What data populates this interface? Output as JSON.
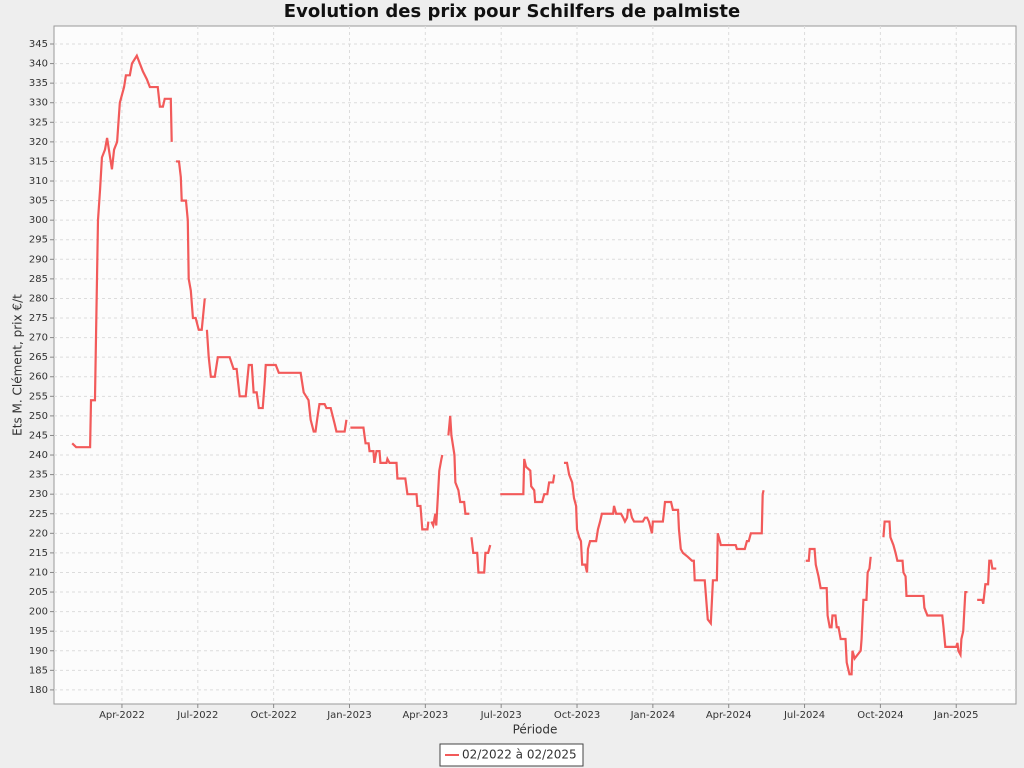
{
  "chart_data": {
    "type": "line",
    "title": "Evolution des prix pour Schilfers de palmiste",
    "x_label": "Période",
    "y_label": "Ets M. Clément, prix €/t",
    "grid": true,
    "legend": "bottom",
    "xlim": [
      2022.026,
      2025.197
    ],
    "ylim": [
      176.4,
      349.6
    ],
    "xticks": [
      {
        "value": 2022.25,
        "label": "Apr-2022"
      },
      {
        "value": 2022.5,
        "label": "Jul-2022"
      },
      {
        "value": 2022.75,
        "label": "Oct-2022"
      },
      {
        "value": 2023.0,
        "label": "Jan-2023"
      },
      {
        "value": 2023.25,
        "label": "Apr-2023"
      },
      {
        "value": 2023.5,
        "label": "Jul-2023"
      },
      {
        "value": 2023.75,
        "label": "Oct-2023"
      },
      {
        "value": 2024.0,
        "label": "Jan-2024"
      },
      {
        "value": 2024.25,
        "label": "Apr-2024"
      },
      {
        "value": 2024.5,
        "label": "Jul-2024"
      },
      {
        "value": 2024.75,
        "label": "Oct-2024"
      },
      {
        "value": 2025.0,
        "label": "Jan-2025"
      }
    ],
    "yticks": [
      180,
      185,
      190,
      195,
      200,
      205,
      210,
      215,
      220,
      225,
      230,
      235,
      240,
      245,
      250,
      255,
      260,
      265,
      270,
      275,
      280,
      285,
      290,
      295,
      300,
      305,
      310,
      315,
      320,
      325,
      330,
      335,
      340,
      345
    ],
    "x": [
      2022.086,
      2022.099,
      2022.145,
      2022.148,
      2022.161,
      2022.164,
      2022.171,
      2022.178,
      2022.184,
      2022.194,
      2022.201,
      2022.207,
      2022.217,
      2022.224,
      2022.234,
      2022.243,
      2022.257,
      2022.263,
      2022.276,
      2022.283,
      2022.299,
      2022.309,
      2022.319,
      2022.332,
      2022.342,
      2022.368,
      2022.375,
      2022.385,
      2022.391,
      2022.411,
      2022.414,
      2022.42,
      2022.428,
      2022.438,
      2022.444,
      2022.447,
      2022.461,
      2022.467,
      2022.47,
      2022.477,
      2022.484,
      2022.493,
      2022.503,
      2022.513,
      2022.523,
      2022.526,
      2022.53,
      2022.536,
      2022.543,
      2022.556,
      2022.566,
      2022.605,
      2022.618,
      2022.628,
      2022.638,
      2022.658,
      2022.668,
      2022.678,
      2022.684,
      2022.694,
      2022.701,
      2022.714,
      2022.72,
      2022.724,
      2022.757,
      2022.767,
      2022.803,
      2022.839,
      2022.849,
      2022.865,
      2022.872,
      2022.882,
      2022.888,
      2022.895,
      2022.901,
      2022.918,
      2022.924,
      2022.938,
      2022.951,
      2022.957,
      2022.984,
      2022.99,
      2022.993,
      2023.003,
      2023.046,
      2023.053,
      2023.063,
      2023.066,
      2023.079,
      2023.082,
      2023.089,
      2023.099,
      2023.102,
      2023.122,
      2023.125,
      2023.132,
      2023.155,
      2023.158,
      2023.184,
      2023.191,
      2023.221,
      2023.224,
      2023.234,
      2023.24,
      2023.257,
      2023.26,
      2023.263,
      2023.27,
      2023.276,
      2023.283,
      2023.286,
      2023.296,
      2023.303,
      2023.306,
      2023.31,
      2023.326,
      2023.332,
      2023.336,
      2023.346,
      2023.349,
      2023.359,
      2023.365,
      2023.378,
      2023.382,
      2023.395,
      2023.398,
      2023.402,
      2023.408,
      2023.421,
      2023.425,
      2023.444,
      2023.448,
      2023.457,
      2023.464,
      2023.47,
      2023.497,
      2023.573,
      2023.576,
      2023.582,
      2023.596,
      2023.599,
      2023.609,
      2023.612,
      2023.635,
      2023.642,
      2023.652,
      2023.658,
      2023.671,
      2023.675,
      2023.68,
      2023.707,
      2023.717,
      2023.724,
      2023.734,
      2023.74,
      2023.747,
      2023.75,
      2023.757,
      2023.763,
      2023.767,
      2023.777,
      2023.783,
      2023.786,
      2023.793,
      2023.813,
      2023.819,
      2023.826,
      2023.832,
      2023.869,
      2023.872,
      2023.879,
      2023.895,
      2023.902,
      2023.908,
      2023.915,
      2023.918,
      2023.925,
      2023.931,
      2023.938,
      2023.967,
      2023.974,
      2023.981,
      2023.987,
      2023.997,
      2024.0,
      2024.033,
      2024.036,
      2024.04,
      2024.06,
      2024.066,
      2024.083,
      2024.086,
      2024.092,
      2024.099,
      2024.115,
      2024.129,
      2024.135,
      2024.138,
      2024.171,
      2024.178,
      2024.181,
      2024.191,
      2024.198,
      2024.211,
      2024.214,
      2024.221,
      2024.224,
      2024.25,
      2024.273,
      2024.277,
      2024.303,
      2024.31,
      2024.316,
      2024.323,
      2024.359,
      2024.362,
      2024.365,
      2024.38,
      2024.504,
      2024.514,
      2024.517,
      2024.533,
      2024.537,
      2024.546,
      2024.553,
      2024.573,
      2024.576,
      2024.583,
      2024.589,
      2024.592,
      2024.602,
      2024.606,
      2024.612,
      2024.619,
      2024.635,
      2024.639,
      2024.648,
      2024.655,
      2024.658,
      2024.665,
      2024.685,
      2024.688,
      2024.694,
      2024.704,
      2024.708,
      2024.714,
      2024.718,
      2024.73,
      2024.76,
      2024.764,
      2024.78,
      2024.783,
      2024.793,
      2024.8,
      2024.806,
      2024.823,
      2024.826,
      2024.833,
      2024.836,
      2024.892,
      2024.895,
      2024.905,
      2024.954,
      2024.958,
      2024.964,
      2024.991,
      2025.0,
      2025.004,
      2025.007,
      2025.014,
      2025.017,
      2025.023,
      2025.03,
      2025.037,
      2025.05,
      2025.069,
      2025.086,
      2025.089,
      2025.096,
      2025.105,
      2025.109,
      2025.115,
      2025.119,
      2025.132
    ],
    "series": [
      {
        "name": "02/2022 à 02/2025",
        "color": "#f25a5a",
        "values": [
          243,
          242,
          242,
          254,
          254,
          268,
          300,
          308,
          316,
          318,
          321,
          318,
          313,
          318,
          320,
          330,
          334,
          337,
          337,
          340,
          342,
          340,
          338,
          336,
          334,
          334,
          329,
          329,
          331,
          331,
          320,
          null,
          315,
          315,
          311,
          305,
          305,
          300,
          285,
          282,
          275,
          275,
          272,
          272,
          280,
          null,
          272,
          265,
          260,
          260,
          265,
          265,
          262,
          262,
          255,
          255,
          263,
          263,
          256,
          256,
          252,
          252,
          258,
          263,
          263,
          261,
          261,
          261,
          256,
          254,
          249,
          246,
          246,
          250,
          253,
          253,
          252,
          252,
          248,
          246,
          246,
          249,
          null,
          247,
          247,
          243,
          243,
          241,
          241,
          238,
          241,
          241,
          238,
          238,
          239,
          238,
          238,
          234,
          234,
          230,
          230,
          227,
          227,
          221,
          221,
          223,
          null,
          223,
          222,
          225,
          222,
          236,
          239,
          240,
          null,
          245,
          250,
          245,
          240,
          233,
          231,
          228,
          228,
          225,
          225,
          null,
          219,
          215,
          215,
          210,
          210,
          215,
          215,
          217,
          null,
          230,
          230,
          239,
          237,
          236,
          232,
          231,
          228,
          228,
          230,
          230,
          233,
          233,
          235,
          null,
          238,
          238,
          235,
          233,
          229,
          227,
          221,
          219,
          218,
          212,
          212,
          210,
          216,
          218,
          218,
          221,
          223,
          225,
          225,
          227,
          225,
          225,
          224,
          223,
          224,
          226,
          226,
          224,
          223,
          223,
          224,
          224,
          223,
          220,
          223,
          223,
          225,
          228,
          228,
          226,
          226,
          221,
          216,
          215,
          214,
          213,
          213,
          208,
          208,
          201,
          198,
          197,
          208,
          208,
          220,
          218,
          217,
          217,
          217,
          216,
          216,
          218,
          218,
          220,
          220,
          230,
          231,
          null,
          213,
          213,
          216,
          216,
          212,
          209,
          206,
          206,
          199,
          196,
          196,
          199,
          199,
          196,
          196,
          193,
          193,
          187,
          184,
          184,
          190,
          188,
          190,
          193,
          203,
          203,
          210,
          211,
          214,
          null,
          219,
          223,
          223,
          219,
          217,
          215,
          213,
          213,
          210,
          209,
          204,
          204,
          201,
          199,
          199,
          196,
          191,
          191,
          191,
          192,
          190,
          189,
          193,
          195,
          205,
          205,
          null,
          203,
          203,
          202,
          207,
          207,
          213,
          213,
          211,
          211
        ]
      }
    ]
  }
}
